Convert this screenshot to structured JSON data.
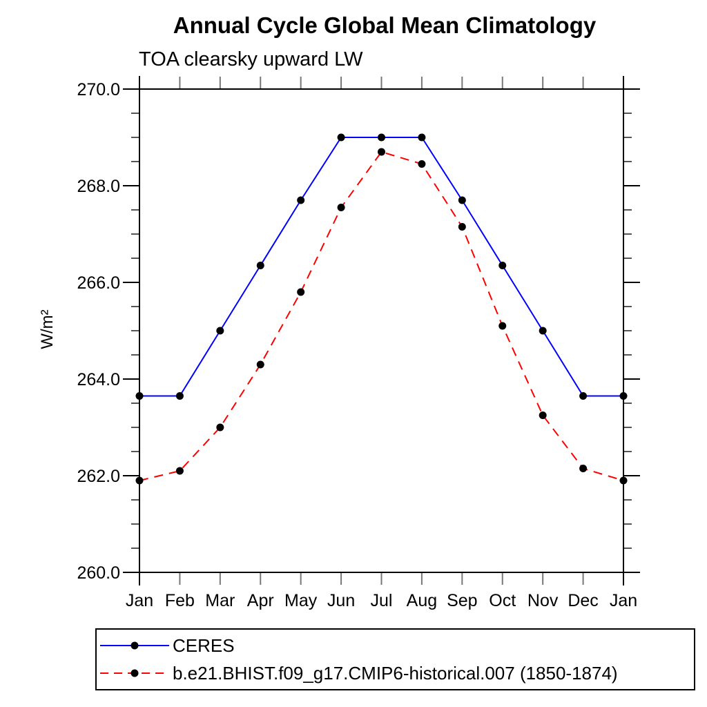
{
  "chart": {
    "title": "Annual Cycle Global Mean Climatology",
    "subtitle": "TOA clearsky upward LW",
    "ylabel": "W/m²"
  },
  "chart_data": {
    "type": "line",
    "title": "Annual Cycle Global Mean Climatology",
    "subtitle": "TOA clearsky upward LW",
    "xlabel": "",
    "ylabel": "W/m²",
    "categories": [
      "Jan",
      "Feb",
      "Mar",
      "Apr",
      "May",
      "Jun",
      "Jul",
      "Aug",
      "Sep",
      "Oct",
      "Nov",
      "Dec",
      "Jan"
    ],
    "series": [
      {
        "name": "CERES",
        "color": "#0000ff",
        "line_style": "solid",
        "marker": "black-dot",
        "values": [
          263.65,
          263.65,
          265.0,
          266.35,
          267.7,
          269.0,
          269.0,
          269.0,
          267.7,
          266.35,
          265.0,
          263.65,
          263.65
        ]
      },
      {
        "name": "b.e21.BHIST.f09_g17.CMIP6-historical.007 (1850-1874)",
        "color": "#ff0000",
        "line_style": "dashed",
        "marker": "black-dot",
        "values": [
          261.9,
          262.1,
          263.0,
          264.3,
          265.8,
          267.55,
          268.7,
          268.45,
          267.15,
          265.1,
          263.25,
          262.15,
          261.9
        ]
      }
    ],
    "ylim": [
      260.0,
      270.0
    ],
    "y_major_ticks": [
      260.0,
      262.0,
      264.0,
      266.0,
      268.0,
      270.0
    ],
    "y_tick_labels": [
      "260.0",
      "262.0",
      "264.0",
      "266.0",
      "268.0",
      "270.0"
    ],
    "y_minor_step": 0.5,
    "grid": false,
    "legend_position": "bottom-left-box",
    "marker_color": "#000000",
    "frame_color": "#000000",
    "month_tick_color": "#777777"
  }
}
